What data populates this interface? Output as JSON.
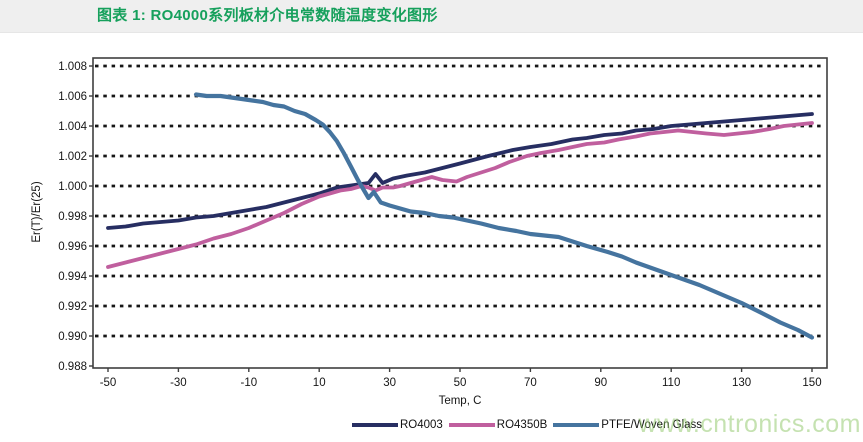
{
  "header": {
    "title": "图表 1: RO4000系列板材介电常数随温度变化图形"
  },
  "watermark": {
    "text": "www.cntronics.com"
  },
  "colors": {
    "title_green": "#16a05c",
    "header_bg": "#efefef",
    "grid_black": "#161616",
    "frame_gray": "#3f3f3f",
    "watermark_green": "#8bc564"
  },
  "chart_data": {
    "type": "line",
    "title": "图表 1: RO4000系列板材介电常数随温度变化图形",
    "xlabel": "Temp, C",
    "ylabel": "Er(T)/Er(25)",
    "xlim": [
      -54.3,
      154.3
    ],
    "ylim": [
      0.988,
      1.008
    ],
    "x_ticks": [
      -50,
      -30,
      -10,
      10,
      30,
      50,
      70,
      90,
      110,
      130,
      150
    ],
    "y_ticks": [
      1.008,
      1.006,
      1.004,
      1.002,
      1.0,
      0.998,
      0.996,
      0.994,
      0.992,
      0.99,
      0.988
    ],
    "y_tick_decimals": 3,
    "grid": "horizontal-dashed",
    "legend_position": "bottom-center",
    "series": [
      {
        "name": "RO4003",
        "color": "#272e62",
        "width": 3.8,
        "points": [
          [
            -50,
            0.9972
          ],
          [
            -45,
            0.9973
          ],
          [
            -40,
            0.9975
          ],
          [
            -35,
            0.9976
          ],
          [
            -30,
            0.9977
          ],
          [
            -25,
            0.9979
          ],
          [
            -20,
            0.998
          ],
          [
            -15,
            0.9982
          ],
          [
            -10,
            0.9984
          ],
          [
            -5,
            0.9986
          ],
          [
            0,
            0.9989
          ],
          [
            5,
            0.9992
          ],
          [
            10,
            0.9995
          ],
          [
            15,
            0.9999
          ],
          [
            18,
            1.0
          ],
          [
            21,
            1.0001
          ],
          [
            24,
            1.0002
          ],
          [
            26,
            1.0008
          ],
          [
            28,
            1.0002
          ],
          [
            31,
            1.0005
          ],
          [
            35,
            1.0007
          ],
          [
            40,
            1.0009
          ],
          [
            45,
            1.0012
          ],
          [
            50,
            1.0015
          ],
          [
            58,
            1.002
          ],
          [
            65,
            1.0024
          ],
          [
            70,
            1.0026
          ],
          [
            76,
            1.0028
          ],
          [
            82,
            1.0031
          ],
          [
            86,
            1.0032
          ],
          [
            91,
            1.0034
          ],
          [
            96,
            1.0035
          ],
          [
            100,
            1.0037
          ],
          [
            105,
            1.0038
          ],
          [
            110,
            1.004
          ],
          [
            115,
            1.0041
          ],
          [
            120,
            1.0042
          ],
          [
            125,
            1.0043
          ],
          [
            130,
            1.0044
          ],
          [
            135,
            1.0045
          ],
          [
            140,
            1.0046
          ],
          [
            145,
            1.0047
          ],
          [
            150,
            1.0048
          ]
        ]
      },
      {
        "name": "RO4350B",
        "color": "#c05f9e",
        "width": 3.8,
        "points": [
          [
            -50,
            0.9946
          ],
          [
            -45,
            0.9949
          ],
          [
            -40,
            0.9952
          ],
          [
            -35,
            0.9955
          ],
          [
            -30,
            0.9958
          ],
          [
            -25,
            0.9961
          ],
          [
            -20,
            0.9965
          ],
          [
            -15,
            0.9968
          ],
          [
            -10,
            0.9972
          ],
          [
            -5,
            0.9977
          ],
          [
            0,
            0.9982
          ],
          [
            5,
            0.9988
          ],
          [
            10,
            0.9993
          ],
          [
            13,
            0.9995
          ],
          [
            16,
            0.9997
          ],
          [
            19,
            0.9998
          ],
          [
            22,
            1.0
          ],
          [
            24,
            0.9999
          ],
          [
            26,
            0.9997
          ],
          [
            28,
            0.9999
          ],
          [
            31,
            0.9999
          ],
          [
            33,
            1.0
          ],
          [
            36,
            1.0002
          ],
          [
            39,
            1.0004
          ],
          [
            42,
            1.0006
          ],
          [
            45,
            1.0004
          ],
          [
            49,
            1.0003
          ],
          [
            52,
            1.0006
          ],
          [
            56,
            1.0009
          ],
          [
            60,
            1.0012
          ],
          [
            64,
            1.0016
          ],
          [
            69,
            1.002
          ],
          [
            73,
            1.0022
          ],
          [
            78,
            1.0024
          ],
          [
            82,
            1.0026
          ],
          [
            86,
            1.0028
          ],
          [
            91,
            1.0029
          ],
          [
            95,
            1.0031
          ],
          [
            100,
            1.0033
          ],
          [
            104,
            1.0035
          ],
          [
            108,
            1.0036
          ],
          [
            112,
            1.0037
          ],
          [
            116,
            1.0036
          ],
          [
            120,
            1.0035
          ],
          [
            125,
            1.0034
          ],
          [
            129,
            1.0035
          ],
          [
            133,
            1.0036
          ],
          [
            138,
            1.0038
          ],
          [
            142,
            1.004
          ],
          [
            146,
            1.0041
          ],
          [
            150,
            1.0042
          ]
        ]
      },
      {
        "name": "PTFE/Woven Glass",
        "color": "#45749f",
        "width": 4.2,
        "points": [
          [
            -25,
            1.0061
          ],
          [
            -22,
            1.006
          ],
          [
            -18,
            1.006
          ],
          [
            -15,
            1.0059
          ],
          [
            -12,
            1.0058
          ],
          [
            -9,
            1.0057
          ],
          [
            -6,
            1.0056
          ],
          [
            -3,
            1.0054
          ],
          [
            0,
            1.0053
          ],
          [
            3,
            1.005
          ],
          [
            6,
            1.0048
          ],
          [
            9,
            1.0044
          ],
          [
            11,
            1.0041
          ],
          [
            13,
            1.0036
          ],
          [
            15,
            1.003
          ],
          [
            17,
            1.0022
          ],
          [
            19,
            1.0013
          ],
          [
            21,
            1.0004
          ],
          [
            22.5,
            0.9998
          ],
          [
            24,
            0.9992
          ],
          [
            25.5,
            0.9996
          ],
          [
            27.5,
            0.9989
          ],
          [
            30,
            0.9987
          ],
          [
            33,
            0.9985
          ],
          [
            36,
            0.9983
          ],
          [
            40,
            0.9982
          ],
          [
            44,
            0.998
          ],
          [
            48,
            0.9979
          ],
          [
            52,
            0.9977
          ],
          [
            56,
            0.9975
          ],
          [
            61,
            0.9972
          ],
          [
            66,
            0.997
          ],
          [
            70,
            0.9968
          ],
          [
            74,
            0.9967
          ],
          [
            78,
            0.9966
          ],
          [
            82,
            0.9963
          ],
          [
            86,
            0.996
          ],
          [
            92,
            0.9956
          ],
          [
            96,
            0.9953
          ],
          [
            100,
            0.9949
          ],
          [
            106,
            0.9944
          ],
          [
            112,
            0.9939
          ],
          [
            118,
            0.9934
          ],
          [
            124,
            0.9928
          ],
          [
            130,
            0.9922
          ],
          [
            136,
            0.9915
          ],
          [
            141,
            0.9909
          ],
          [
            146,
            0.9904
          ],
          [
            150,
            0.9899
          ]
        ]
      }
    ]
  }
}
